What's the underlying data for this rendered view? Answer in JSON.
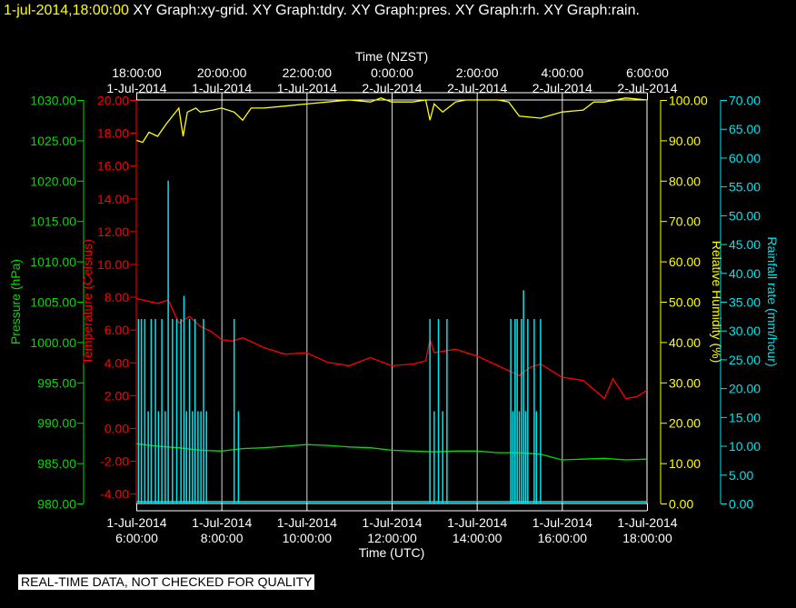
{
  "title": {
    "timestamp": "1-jul-2014,18:00:00",
    "graphs": "XY Graph:xy-grid.  XY Graph:tdry.  XY Graph:pres.  XY Graph:rh.  XY Graph:rain."
  },
  "notice": "REAL-TIME DATA, NOT CHECKED FOR QUALITY",
  "colors": {
    "pressure": "#00dd00",
    "temperature": "#ff0000",
    "humidity": "#ffff00",
    "rainfall": "#00e5ee",
    "grid": "#ffffff",
    "background": "#000000"
  },
  "chart_data": {
    "type": "line",
    "x_top_label": "Time (NZST)",
    "x_bottom_label": "Time (UTC)",
    "x_range_utc_hours": [
      6,
      18
    ],
    "x_ticks_top": [
      {
        "time": "18:00:00",
        "date": "1-Jul-2014"
      },
      {
        "time": "20:00:00",
        "date": "1-Jul-2014"
      },
      {
        "time": "22:00:00",
        "date": "1-Jul-2014"
      },
      {
        "time": "0:00:00",
        "date": "2-Jul-2014"
      },
      {
        "time": "2:00:00",
        "date": "2-Jul-2014"
      },
      {
        "time": "4:00:00",
        "date": "2-Jul-2014"
      },
      {
        "time": "6:00:00",
        "date": "2-Jul-2014"
      }
    ],
    "x_ticks_bottom": [
      {
        "date": "1-Jul-2014",
        "time": "6:00:00"
      },
      {
        "date": "1-Jul-2014",
        "time": "8:00:00"
      },
      {
        "date": "1-Jul-2014",
        "time": "10:00:00"
      },
      {
        "date": "1-Jul-2014",
        "time": "12:00:00"
      },
      {
        "date": "1-Jul-2014",
        "time": "14:00:00"
      },
      {
        "date": "1-Jul-2014",
        "time": "16:00:00"
      },
      {
        "date": "1-Jul-2014",
        "time": "18:00:00"
      }
    ],
    "axes": {
      "pressure": {
        "label": "Pressure (hPa)",
        "ylim": [
          980,
          1030
        ],
        "ticks": [
          "1030.00",
          "1025.00",
          "1020.00",
          "1015.00",
          "1010.00",
          "1005.00",
          "1000.00",
          "995.00",
          "990.00",
          "985.00",
          "980.00"
        ]
      },
      "temperature": {
        "label": "Temperature (Celsius)",
        "ylim": [
          -4.6,
          20
        ],
        "ticks": [
          "20.00",
          "18.00",
          "16.00",
          "14.00",
          "12.00",
          "10.00",
          "8.00",
          "6.00",
          "4.00",
          "2.00",
          "0.00",
          "-2.00",
          "-4.00"
        ]
      },
      "humidity": {
        "label": "Relative Humidity (%)",
        "ylim": [
          0,
          100
        ],
        "ticks": [
          "100.00",
          "90.00",
          "80.00",
          "70.00",
          "60.00",
          "50.00",
          "40.00",
          "30.00",
          "20.00",
          "10.00",
          "0.00"
        ]
      },
      "rainfall": {
        "label": "Rainfall rate (mm/hour)",
        "ylim": [
          0,
          70
        ],
        "ticks": [
          "70.00",
          "65.00",
          "60.00",
          "55.00",
          "50.00",
          "45.00",
          "40.00",
          "35.00",
          "30.00",
          "25.00",
          "20.00",
          "15.00",
          "10.00",
          "5.00",
          "0.00"
        ]
      }
    },
    "series": [
      {
        "name": "Pressure (hPa)",
        "key": "pressure",
        "x": [
          6.0,
          6.5,
          7.0,
          7.5,
          8.0,
          8.5,
          9.0,
          9.5,
          10.0,
          10.5,
          11.0,
          11.5,
          12.0,
          12.5,
          13.0,
          13.5,
          14.0,
          14.5,
          15.0,
          15.5,
          16.0,
          16.5,
          17.0,
          17.5,
          18.0
        ],
        "y": [
          987.4,
          987.1,
          986.9,
          986.6,
          986.5,
          986.8,
          986.9,
          987.1,
          987.3,
          987.2,
          987.0,
          986.9,
          986.6,
          986.5,
          986.4,
          986.5,
          986.5,
          986.3,
          986.3,
          986.1,
          985.4,
          985.5,
          985.6,
          985.4,
          985.5
        ]
      },
      {
        "name": "Temperature (Celsius)",
        "key": "temperature",
        "x": [
          6.0,
          6.5,
          6.75,
          7.0,
          7.25,
          7.5,
          7.75,
          8.0,
          8.25,
          8.5,
          9.0,
          9.5,
          10.0,
          10.5,
          11.0,
          11.5,
          12.0,
          12.5,
          12.8,
          12.9,
          13.0,
          13.5,
          14.0,
          14.5,
          15.0,
          15.25,
          15.5,
          16.0,
          16.5,
          17.0,
          17.2,
          17.5,
          17.75,
          18.0
        ],
        "y": [
          7.9,
          7.6,
          7.8,
          6.4,
          6.8,
          6.2,
          5.9,
          5.4,
          5.3,
          5.5,
          4.9,
          4.5,
          4.6,
          4.0,
          3.8,
          4.3,
          3.8,
          3.9,
          4.1,
          5.4,
          4.6,
          4.8,
          4.4,
          3.8,
          3.2,
          3.7,
          3.9,
          3.1,
          2.9,
          1.8,
          3.0,
          1.8,
          1.9,
          2.3
        ]
      },
      {
        "name": "Relative Humidity (%)",
        "key": "humidity",
        "x": [
          6.0,
          6.15,
          6.3,
          6.5,
          6.7,
          7.0,
          7.1,
          7.2,
          7.4,
          7.5,
          7.8,
          8.0,
          8.3,
          8.5,
          8.7,
          9.0,
          9.5,
          10.0,
          10.5,
          11.0,
          11.5,
          11.75,
          12.0,
          12.5,
          12.8,
          12.9,
          13.0,
          13.2,
          13.5,
          13.75,
          14.0,
          14.5,
          14.75,
          15.0,
          15.5,
          16.0,
          16.5,
          16.75,
          17.0,
          17.5,
          18.0
        ],
        "y": [
          90.0,
          89.5,
          92.0,
          91.0,
          94.0,
          98.0,
          91.0,
          97.0,
          98.0,
          97.0,
          97.5,
          98.0,
          97.0,
          95.0,
          98.0,
          98.0,
          98.5,
          99.0,
          99.5,
          100.0,
          99.5,
          100.5,
          99.5,
          99.5,
          100.0,
          95.0,
          99.0,
          97.0,
          99.5,
          100.0,
          100.0,
          100.0,
          99.5,
          96.0,
          95.5,
          97.0,
          97.5,
          99.5,
          99.5,
          100.5,
          100.0
        ]
      },
      {
        "name": "Rainfall rate (mm/hour)",
        "key": "rainfall",
        "type": "bar",
        "x": [
          6.05,
          6.12,
          6.2,
          6.28,
          6.35,
          6.45,
          6.52,
          6.6,
          6.68,
          6.75,
          6.85,
          6.95,
          7.05,
          7.12,
          7.18,
          7.25,
          7.32,
          7.38,
          7.45,
          7.52,
          7.58,
          7.65,
          8.3,
          8.4,
          12.9,
          13.0,
          13.1,
          13.2,
          13.3,
          14.8,
          14.85,
          14.9,
          14.95,
          15.0,
          15.05,
          15.1,
          15.15,
          15.2,
          15.35,
          15.4,
          15.5
        ],
        "y": [
          32,
          32,
          32,
          16,
          32,
          32,
          16,
          32,
          16,
          56,
          32,
          32,
          32,
          36,
          16,
          32,
          16,
          32,
          16,
          16,
          32,
          16,
          32,
          16,
          32,
          16,
          32,
          16,
          32,
          32,
          16,
          32,
          32,
          16,
          32,
          37,
          16,
          32,
          32,
          16,
          32
        ]
      }
    ]
  }
}
